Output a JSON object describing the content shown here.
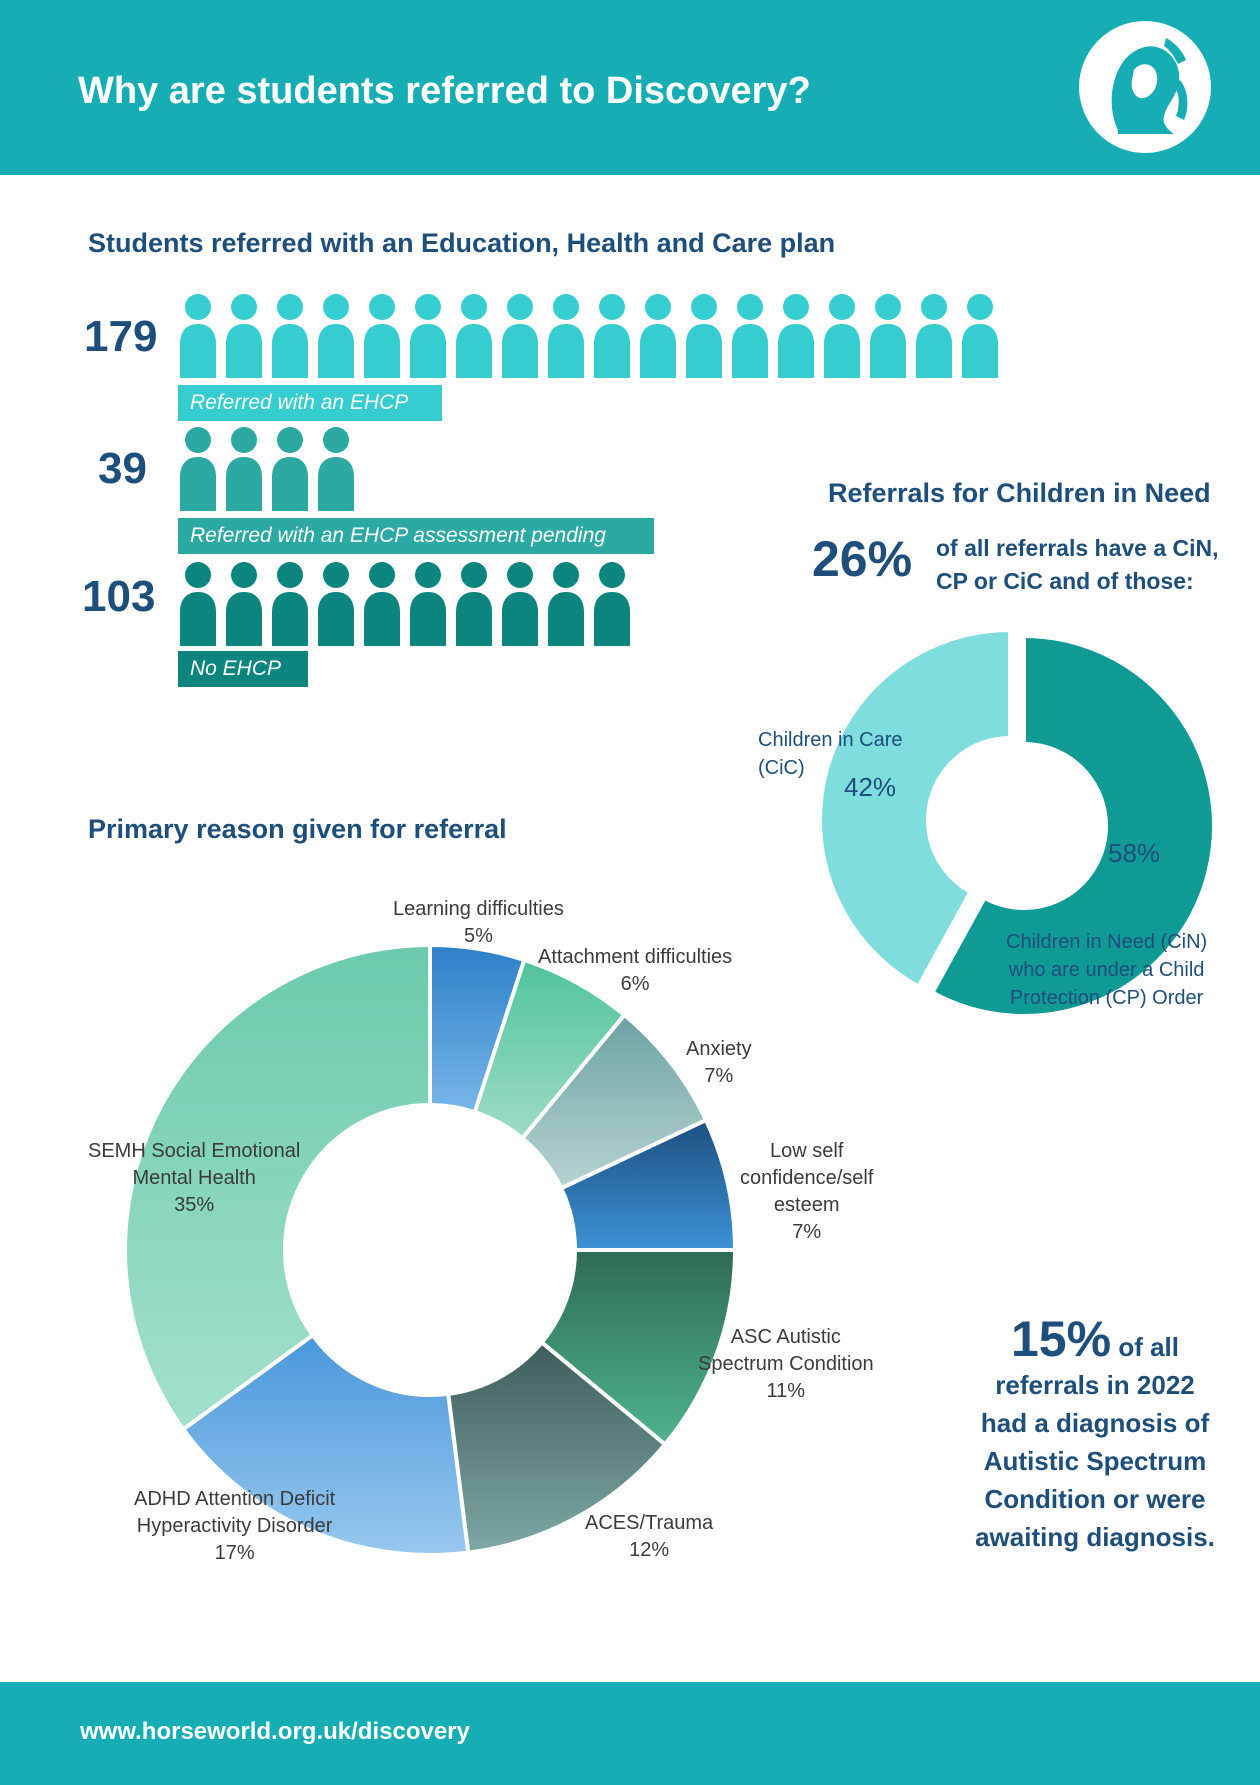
{
  "header": {
    "title": "Why are students referred to Discovery?"
  },
  "ehcp": {
    "title": "Students referred with an Education, Health and Care plan",
    "rows": [
      {
        "number": "179",
        "label": "Referred with an EHCP",
        "icons": 18,
        "color": "#35cdcf"
      },
      {
        "number": "39",
        "label": "Referred with an EHCP assessment pending",
        "icons": 4,
        "color": "#2ca9a3"
      },
      {
        "number": "103",
        "label": "No EHCP",
        "icons": 10,
        "color": "#0d857f"
      }
    ]
  },
  "cin": {
    "title": "Referrals for Children in Need",
    "big_percent": "26%",
    "text_line1": "of all referrals have a CiN,",
    "text_line2": "CP or CiC and of those:",
    "cic_label_line1": "Children in Care",
    "cic_label_line2": "(CiC)",
    "cic_value": "42%",
    "cin_value": "58%",
    "cin_label_line1": "Children in Need  (CiN)",
    "cin_label_line2": "who are under a Child",
    "cin_label_line3": "Protection (CP) Order"
  },
  "reasons": {
    "title": "Primary reason given for referral",
    "labels": {
      "learning_name": "Learning difficulties",
      "learning_value": "5%",
      "attachment_name": "Attachment difficulties",
      "attachment_value": "6%",
      "anxiety_name": "Anxiety",
      "anxiety_value": "7%",
      "low_self_line1": "Low self",
      "low_self_line2": "confidence/self",
      "low_self_line3": "esteem",
      "low_self_value": "7%",
      "asc_line1": "ASC Autistic",
      "asc_line2": "Spectrum Condition",
      "asc_value": "11%",
      "aces_name": "ACES/Trauma",
      "aces_value": "12%",
      "adhd_line1": "ADHD Attention Deficit",
      "adhd_line2": "Hyperactivity Disorder",
      "adhd_value": "17%",
      "semh_line1": "SEMH Social Emotional",
      "semh_line2": "Mental Health",
      "semh_value": "35%"
    }
  },
  "asc_note": {
    "big": "15%",
    "line1": "of all",
    "line2": "referrals in 2022",
    "line3": "had a diagnosis of",
    "line4": "Autistic Spectrum",
    "line5": "Condition or were",
    "line6": "awaiting diagnosis."
  },
  "footer": {
    "url": "www.horseworld.org.uk/discovery"
  },
  "chart_data": [
    {
      "type": "pie",
      "title": "Referrals for Children in Need",
      "categories": [
        "Children in Care (CiC)",
        "Children in Need (CiN) who are under a Child Protection (CP) Order"
      ],
      "values": [
        42,
        58
      ],
      "colors": [
        "#7fdedd",
        "#0f9a96"
      ]
    },
    {
      "type": "pie",
      "title": "Primary reason given for referral",
      "categories": [
        "Learning difficulties",
        "Attachment difficulties",
        "Anxiety",
        "Low self confidence/self esteem",
        "ASC Autistic Spectrum Condition",
        "ACES/Trauma",
        "ADHD Attention Deficit Hyperactivity Disorder",
        "SEMH Social Emotional Mental Health"
      ],
      "values": [
        5,
        6,
        7,
        7,
        11,
        12,
        17,
        35
      ],
      "colors": [
        [
          "#2d7fc8",
          "#78b6e8"
        ],
        [
          "#4fc39a",
          "#9fdcc5"
        ],
        [
          "#6da3a3",
          "#b7d3d2"
        ],
        [
          "#1c4f80",
          "#3d92d6"
        ],
        [
          "#2e6b52",
          "#4fb48e"
        ],
        [
          "#3f5c5c",
          "#7ea8a5"
        ],
        [
          "#4a97db",
          "#98c8ef"
        ],
        [
          "#6ccaad",
          "#a3e0cd"
        ]
      ]
    }
  ]
}
